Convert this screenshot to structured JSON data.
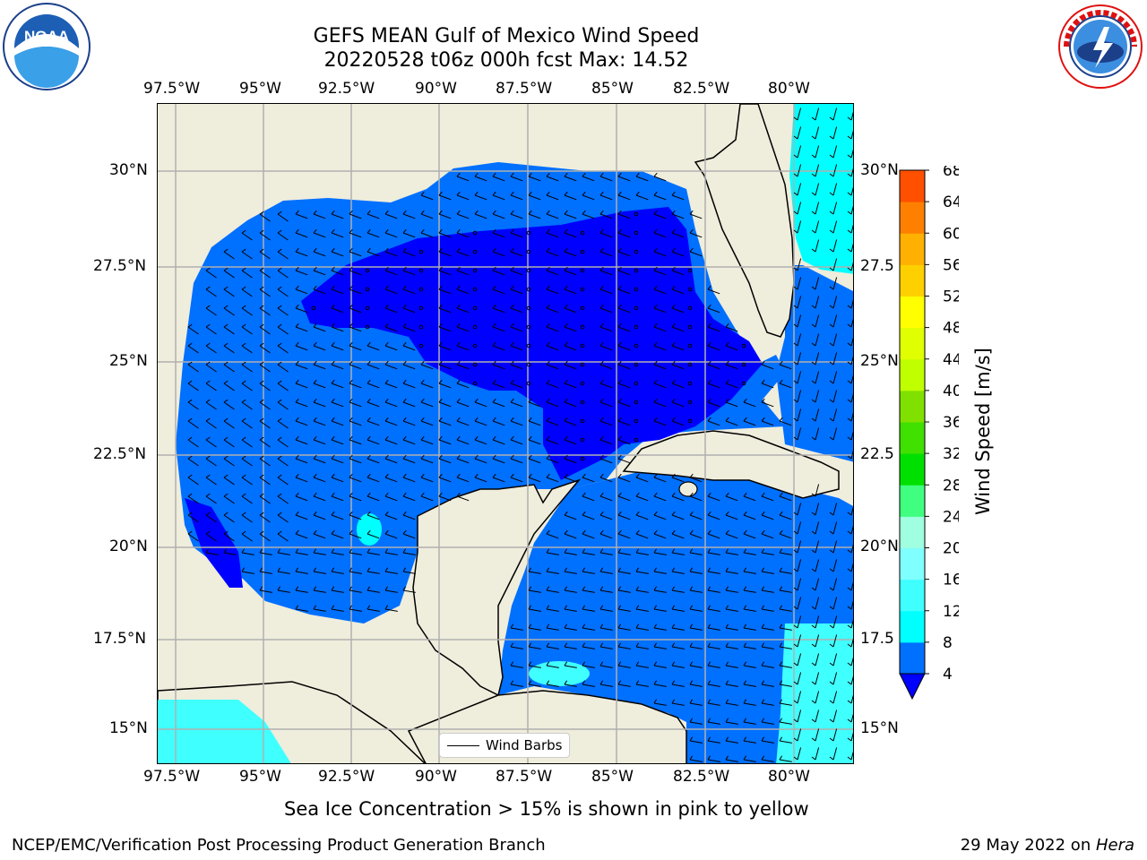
{
  "header": {
    "title_line1": "GEFS MEAN Gulf of Mexico Wind Speed",
    "title_line2": "20220528 t06z 000h fcst   Max: 14.52"
  },
  "logos": {
    "left": {
      "name": "noaa-logo",
      "text": "NOAA",
      "ring_text": "NATIONAL OCEANIC AND ATMOSPHERIC ADMINISTRATION • U.S. DEPARTMENT OF COMMERCE"
    },
    "right": {
      "name": "nws-logo",
      "ring_text": "NATIONAL WEATHER SERVICE"
    }
  },
  "map": {
    "lon_labels": [
      "97.5°W",
      "95°W",
      "92.5°W",
      "90°W",
      "87.5°W",
      "85°W",
      "82.5°W",
      "80°W"
    ],
    "lat_labels_left": [
      "30°N",
      "27.5°N",
      "25°N",
      "22.5°N",
      "20°N",
      "17.5°N",
      "15°N"
    ],
    "lat_labels_right": [
      "30°N",
      "27.5",
      "25°N",
      "22.5",
      "20°N",
      "17.5",
      "15°N"
    ],
    "legend_label": "Wind Barbs",
    "land_color": "#efeddc",
    "grid_color": "#b0b0b0"
  },
  "colorbar": {
    "label": "Wind Speed [m/s]",
    "ticks": [
      "4",
      "8",
      "12",
      "16",
      "20",
      "24",
      "28",
      "32",
      "36",
      "40",
      "44",
      "48",
      "52",
      "56",
      "60",
      "64",
      "68"
    ],
    "colors": [
      "#0070ff",
      "#00ffff",
      "#40ffff",
      "#80ffff",
      "#a0ffe0",
      "#40ff80",
      "#00e000",
      "#40e000",
      "#80e000",
      "#c0ff00",
      "#e0ff00",
      "#ffff00",
      "#ffd000",
      "#ffb000",
      "#ff8000",
      "#ff5000",
      "#ff2000",
      "#ff0000"
    ],
    "under_color": "#0000ff"
  },
  "footer": {
    "note": "Sea Ice Concentration > 15% is shown in pink to yellow",
    "credit": "NCEP/EMC/Verification Post Processing Product Generation Branch",
    "date": "29 May 2022 on ",
    "host": "Hera"
  }
}
